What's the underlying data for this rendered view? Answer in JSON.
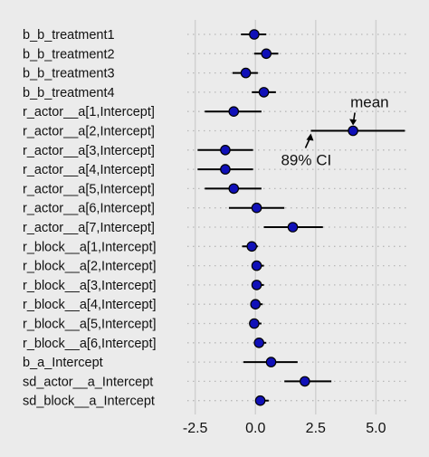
{
  "chart_data": {
    "type": "scatter",
    "xlim": [
      -2.9,
      6.3
    ],
    "xticks": [
      -2.5,
      0.0,
      2.5,
      5.0
    ],
    "xtick_labels": [
      "-2.5",
      "0.0",
      "2.5",
      "5.0"
    ],
    "grid": "vertical major lines at ticks; dotted guide per row",
    "series": [
      {
        "param": "b_b_treatment1",
        "mean": -0.05,
        "lo": -0.6,
        "hi": 0.45
      },
      {
        "param": "b_b_treatment2",
        "mean": 0.45,
        "lo": -0.05,
        "hi": 0.95
      },
      {
        "param": "b_b_treatment3",
        "mean": -0.4,
        "lo": -0.95,
        "hi": 0.1
      },
      {
        "param": "b_b_treatment4",
        "mean": 0.35,
        "lo": -0.15,
        "hi": 0.85
      },
      {
        "param": "r_actor__a[1,Intercept]",
        "mean": -0.9,
        "lo": -2.1,
        "hi": 0.25
      },
      {
        "param": "r_actor__a[2,Intercept]",
        "mean": 4.05,
        "lo": 2.3,
        "hi": 6.2
      },
      {
        "param": "r_actor__a[3,Intercept]",
        "mean": -1.25,
        "lo": -2.4,
        "hi": -0.1
      },
      {
        "param": "r_actor__a[4,Intercept]",
        "mean": -1.25,
        "lo": -2.4,
        "hi": -0.1
      },
      {
        "param": "r_actor__a[5,Intercept]",
        "mean": -0.9,
        "lo": -2.1,
        "hi": 0.25
      },
      {
        "param": "r_actor__a[6,Intercept]",
        "mean": 0.05,
        "lo": -1.1,
        "hi": 1.2
      },
      {
        "param": "r_actor__a[7,Intercept]",
        "mean": 1.55,
        "lo": 0.35,
        "hi": 2.8
      },
      {
        "param": "r_block__a[1,Intercept]",
        "mean": -0.15,
        "lo": -0.55,
        "hi": 0.1
      },
      {
        "param": "r_block__a[2,Intercept]",
        "mean": 0.05,
        "lo": -0.15,
        "hi": 0.35
      },
      {
        "param": "r_block__a[3,Intercept]",
        "mean": 0.05,
        "lo": -0.15,
        "hi": 0.35
      },
      {
        "param": "r_block__a[4,Intercept]",
        "mean": 0.0,
        "lo": -0.2,
        "hi": 0.3
      },
      {
        "param": "r_block__a[5,Intercept]",
        "mean": -0.05,
        "lo": -0.25,
        "hi": 0.25
      },
      {
        "param": "r_block__a[6,Intercept]",
        "mean": 0.15,
        "lo": -0.05,
        "hi": 0.45
      },
      {
        "param": "b_a_Intercept",
        "mean": 0.65,
        "lo": -0.5,
        "hi": 1.75
      },
      {
        "param": "sd_actor__a_Intercept",
        "mean": 2.05,
        "lo": 1.2,
        "hi": 3.15
      },
      {
        "param": "sd_block__a_Intercept",
        "mean": 0.2,
        "lo": 0.0,
        "hi": 0.55
      }
    ],
    "annotations": [
      {
        "text": "mean",
        "target": "r_actor__a[2,Intercept]",
        "points_to": "mean"
      },
      {
        "text": "89% CI",
        "target": "r_actor__a[2,Intercept]",
        "points_to": "lo"
      }
    ]
  },
  "colors": {
    "background": "#ebebeb",
    "grid": "#cfcfcf",
    "dots": "#b8b8b8",
    "point_fill": "#1010b8",
    "ink": "#000000"
  }
}
